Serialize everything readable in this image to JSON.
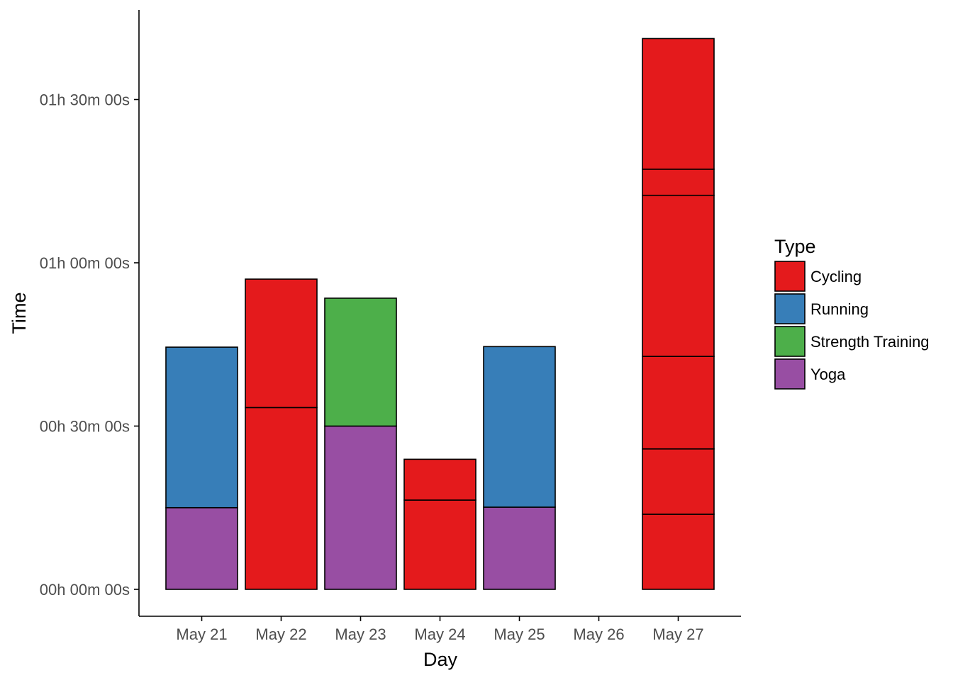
{
  "chart_data": {
    "type": "bar",
    "stacked": true,
    "xlabel": "Day",
    "ylabel": "Time",
    "categories": [
      "May 21",
      "May 22",
      "May 23",
      "May 24",
      "May 25",
      "May 26",
      "May 27"
    ],
    "y_unit": "minutes",
    "ylim": [
      0,
      101
    ],
    "y_ticks": [
      {
        "value": 0,
        "label": "00h 00m 00s"
      },
      {
        "value": 30,
        "label": "00h 30m 00s"
      },
      {
        "value": 60,
        "label": "01h 00m 00s"
      },
      {
        "value": 90,
        "label": "01h 30m 00s"
      }
    ],
    "grid": false,
    "legend": {
      "title": "Type",
      "position": "right",
      "entries": [
        "Cycling",
        "Running",
        "Strength Training",
        "Yoga"
      ]
    },
    "colors": {
      "Cycling": "#e41a1c",
      "Running": "#377eb8",
      "Strength Training": "#4daf4a",
      "Yoga": "#984ea3"
    },
    "segments": [
      {
        "category": "May 21",
        "type": "Yoga",
        "minutes": 15
      },
      {
        "category": "May 21",
        "type": "Running",
        "minutes": 29.5
      },
      {
        "category": "May 22",
        "type": "Cycling",
        "minutes": 33.4
      },
      {
        "category": "May 22",
        "type": "Cycling",
        "minutes": 23.6
      },
      {
        "category": "May 23",
        "type": "Yoga",
        "minutes": 30
      },
      {
        "category": "May 23",
        "type": "Strength Training",
        "minutes": 23.5
      },
      {
        "category": "May 24",
        "type": "Cycling",
        "minutes": 16.4
      },
      {
        "category": "May 24",
        "type": "Cycling",
        "minutes": 7.5
      },
      {
        "category": "May 25",
        "type": "Yoga",
        "minutes": 15.1
      },
      {
        "category": "May 25",
        "type": "Running",
        "minutes": 29.5
      },
      {
        "category": "May 27",
        "type": "Cycling",
        "minutes": 13.8
      },
      {
        "category": "May 27",
        "type": "Cycling",
        "minutes": 12
      },
      {
        "category": "May 27",
        "type": "Cycling",
        "minutes": 17
      },
      {
        "category": "May 27",
        "type": "Cycling",
        "minutes": 29.6
      },
      {
        "category": "May 27",
        "type": "Cycling",
        "minutes": 4.8
      },
      {
        "category": "May 27",
        "type": "Cycling",
        "minutes": 24
      }
    ]
  }
}
